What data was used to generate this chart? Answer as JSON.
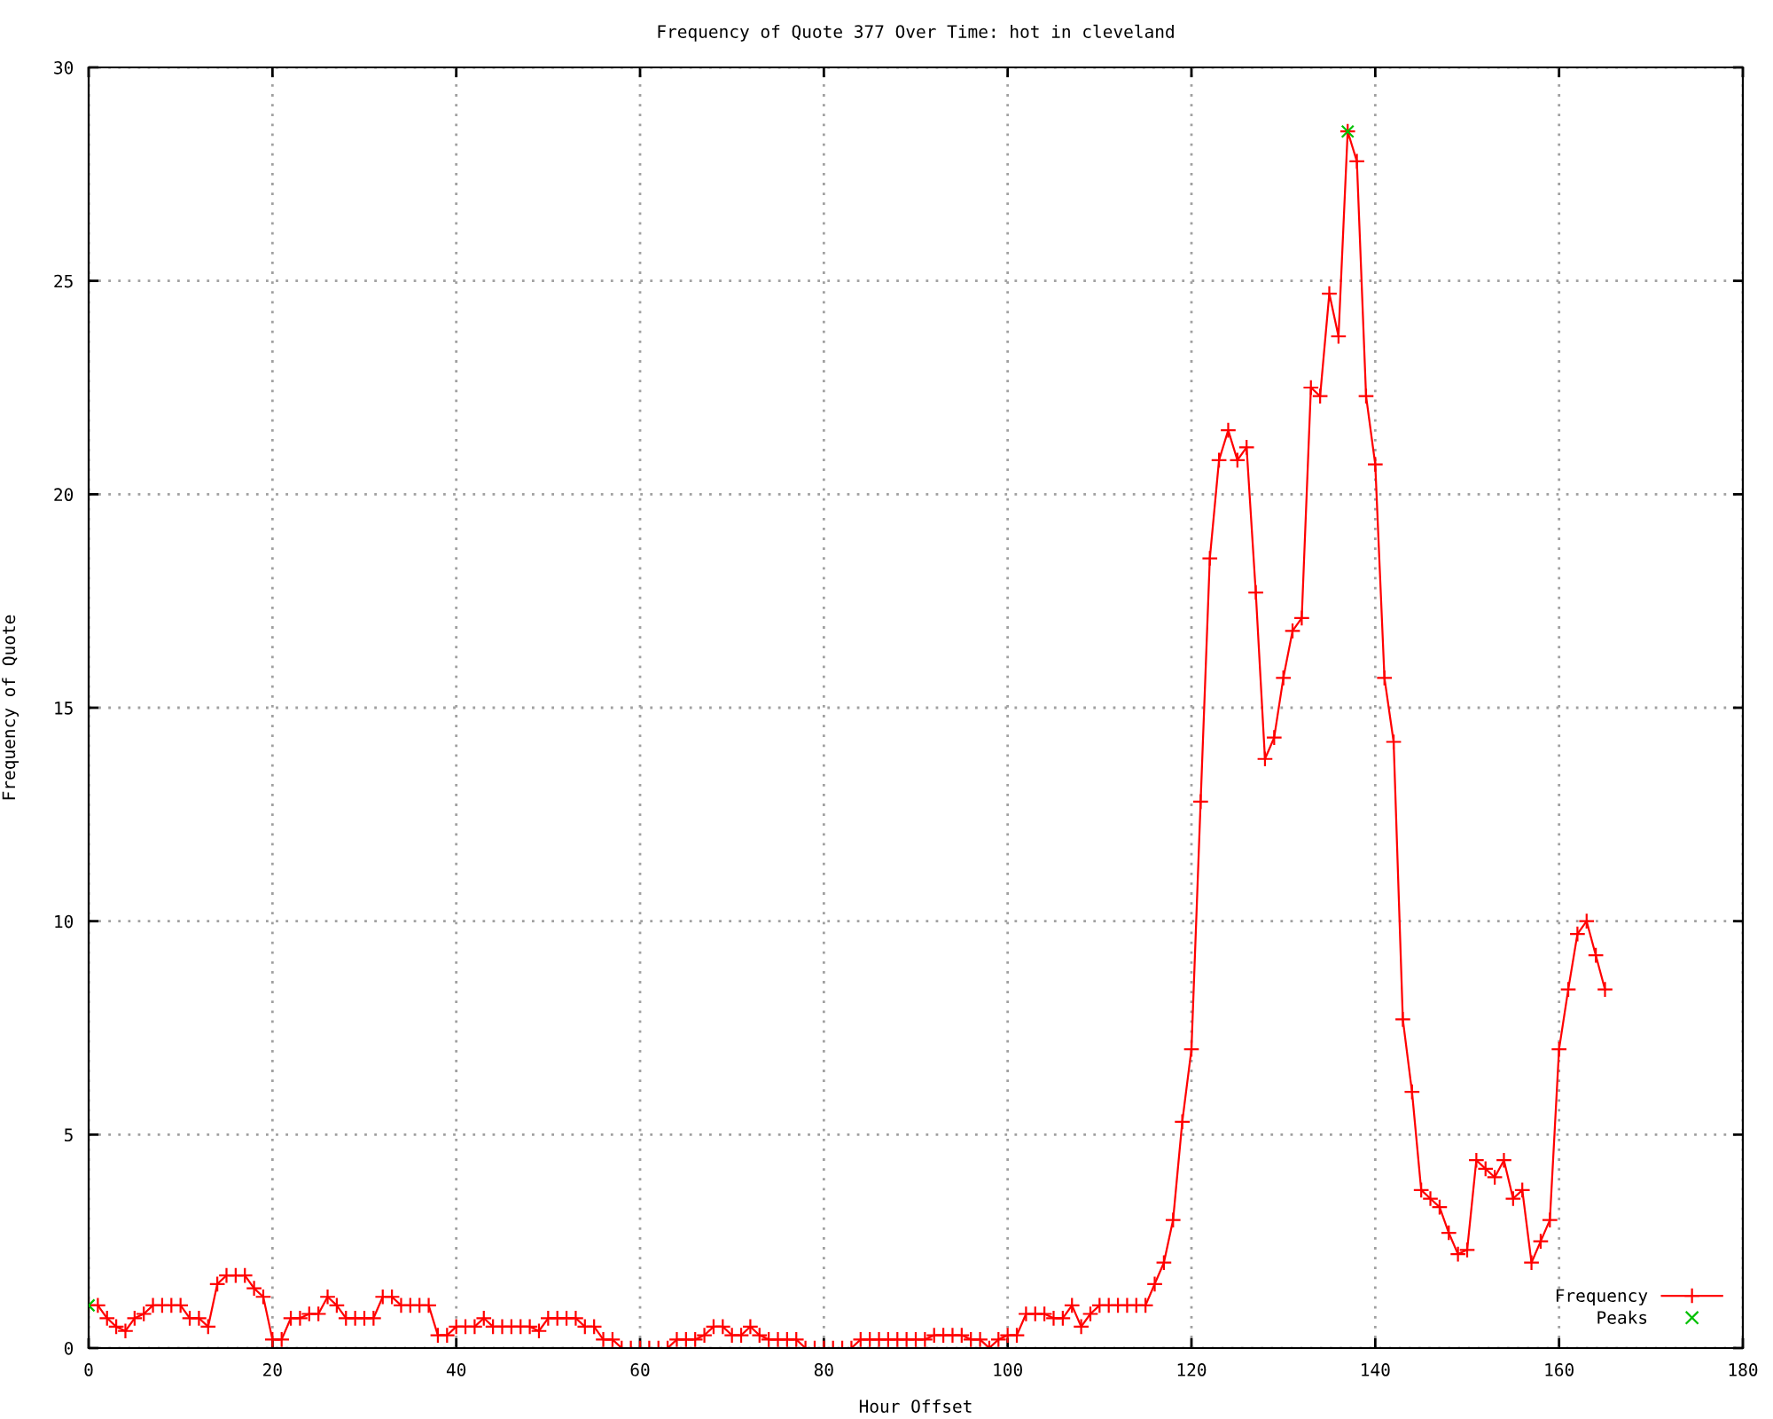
{
  "chart_data": {
    "type": "line",
    "title": "Frequency of Quote 377 Over Time: hot in cleveland",
    "xlabel": "Hour Offset",
    "ylabel": "Frequency of Quote",
    "xlim": [
      0,
      180
    ],
    "xticks": [
      0,
      20,
      40,
      60,
      80,
      100,
      120,
      140,
      160,
      180
    ],
    "ylim": [
      0,
      30
    ],
    "yticks": [
      0,
      5,
      10,
      15,
      20,
      25,
      30
    ],
    "grid": true,
    "legend": "bottom right",
    "line_style": "solid",
    "series": [
      {
        "name": "Frequency",
        "color": "#ff0000",
        "marker": "cross",
        "x": [
          0,
          1,
          2,
          3,
          4,
          5,
          6,
          7,
          8,
          9,
          10,
          11,
          12,
          13,
          14,
          15,
          16,
          17,
          18,
          19,
          20,
          21,
          22,
          23,
          24,
          25,
          26,
          27,
          28,
          29,
          30,
          31,
          32,
          33,
          34,
          35,
          36,
          37,
          38,
          39,
          40,
          41,
          42,
          43,
          44,
          45,
          46,
          47,
          48,
          49,
          50,
          51,
          52,
          53,
          54,
          55,
          56,
          57,
          58,
          59,
          60,
          61,
          62,
          63,
          64,
          65,
          66,
          67,
          68,
          69,
          70,
          71,
          72,
          73,
          74,
          75,
          76,
          77,
          78,
          79,
          80,
          81,
          82,
          83,
          84,
          85,
          86,
          87,
          88,
          89,
          90,
          91,
          92,
          93,
          94,
          95,
          96,
          97,
          98,
          99,
          100,
          101,
          102,
          103,
          104,
          105,
          106,
          107,
          108,
          109,
          110,
          111,
          112,
          113,
          114,
          115,
          116,
          117,
          118,
          119,
          120,
          121,
          122,
          123,
          124,
          125,
          126,
          127,
          128,
          129,
          130,
          131,
          132,
          133,
          134,
          135,
          136,
          137,
          138,
          139,
          140,
          141,
          142,
          143,
          144,
          145,
          146,
          147,
          148,
          149,
          150,
          151,
          152,
          153,
          154,
          155,
          156,
          157,
          158,
          159,
          160,
          161,
          162,
          163,
          164,
          165
        ],
        "values": [
          1.0,
          1.0,
          0.7,
          0.5,
          0.4,
          0.7,
          0.8,
          1.0,
          1.0,
          1.0,
          1.0,
          0.7,
          0.7,
          0.5,
          1.5,
          1.7,
          1.7,
          1.7,
          1.4,
          1.2,
          0.2,
          0.2,
          0.7,
          0.7,
          0.8,
          0.8,
          1.2,
          1.0,
          0.7,
          0.7,
          0.7,
          0.7,
          1.2,
          1.2,
          1.0,
          1.0,
          1.0,
          1.0,
          0.3,
          0.3,
          0.5,
          0.5,
          0.5,
          0.7,
          0.5,
          0.5,
          0.5,
          0.5,
          0.5,
          0.4,
          0.7,
          0.7,
          0.7,
          0.7,
          0.5,
          0.5,
          0.2,
          0.2,
          0,
          0,
          0,
          0,
          0,
          0,
          0.2,
          0.2,
          0.2,
          0.3,
          0.5,
          0.5,
          0.3,
          0.3,
          0.5,
          0.3,
          0.2,
          0.2,
          0.2,
          0.2,
          0,
          0,
          0,
          0,
          0,
          0,
          0.2,
          0.2,
          0.2,
          0.2,
          0.2,
          0.2,
          0.2,
          0.2,
          0.3,
          0.3,
          0.3,
          0.3,
          0.2,
          0.2,
          0,
          0.2,
          0.3,
          0.3,
          0.8,
          0.8,
          0.8,
          0.7,
          0.7,
          1.0,
          0.5,
          0.8,
          1.0,
          1.0,
          1.0,
          1.0,
          1.0,
          1.0,
          1.5,
          2.0,
          3.0,
          5.3,
          7.0,
          12.8,
          18.5,
          20.8,
          21.5,
          20.8,
          21.1,
          17.7,
          13.8,
          14.3,
          15.7,
          16.8,
          17.1,
          22.5,
          22.3,
          24.7,
          23.7,
          28.5,
          27.8,
          22.3,
          20.7,
          15.7,
          14.2,
          7.7,
          6.0,
          3.7,
          3.5,
          3.3,
          2.7,
          2.2,
          2.3,
          4.4,
          4.2,
          4.0,
          4.4,
          3.5,
          3.7,
          2.0,
          2.5,
          3.0,
          7.0,
          8.4,
          9.7,
          10.0,
          9.2,
          8.4
        ]
      },
      {
        "name": "Peaks",
        "type": "scatter",
        "color": "#00c000",
        "marker": "x",
        "x": [
          0,
          137
        ],
        "values": [
          1.0,
          28.5
        ]
      }
    ]
  }
}
